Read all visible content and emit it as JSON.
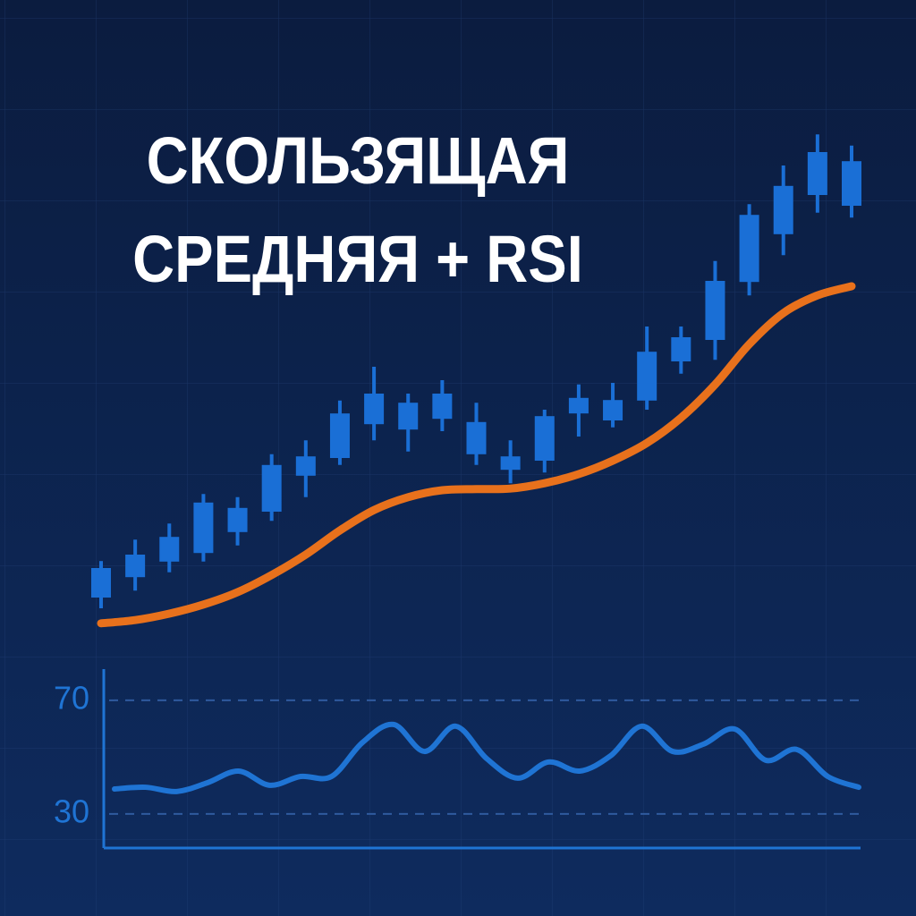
{
  "chart_data": [
    {
      "type": "candlestick",
      "title": "СКОЛЬЗЯЩАЯ СРЕДНЯЯ + RSI",
      "color": "#1a6fd6",
      "open": [
        12,
        15.8,
        18.7,
        20.3,
        24.2,
        28,
        34.7,
        38,
        44.3,
        48.3,
        45.3,
        44.7,
        38.3,
        37.5,
        46.3,
        45,
        48.7,
        56,
        60,
        70.8,
        79.7,
        87,
        93.3
      ],
      "close": [
        17.5,
        20,
        23.3,
        29.7,
        28.7,
        36.7,
        38.3,
        46.3,
        50,
        43.3,
        50,
        38.7,
        35.8,
        45.8,
        49.2,
        48.8,
        57.8,
        60.5,
        71,
        83.3,
        88.7,
        95,
        85
      ],
      "high": [
        18.8,
        22.8,
        25.8,
        31.3,
        30.7,
        38.7,
        41.3,
        48.7,
        55,
        50,
        52.5,
        48.3,
        41.3,
        47,
        51.7,
        52,
        62.5,
        62.5,
        74.7,
        85.3,
        92.5,
        98.3,
        96.2
      ],
      "low": [
        10,
        13.3,
        16.7,
        18.7,
        21.7,
        26.3,
        30.7,
        36.7,
        41.3,
        39.2,
        43,
        36.7,
        33.3,
        35.3,
        42,
        43.7,
        47,
        53.7,
        56.3,
        68.3,
        75.8,
        83.7,
        82.8
      ],
      "lines": [
        {
          "color": "#e8711c",
          "values": [
            7.2,
            7.8,
            9,
            10.7,
            13,
            16.2,
            20,
            24.5,
            28.3,
            30.7,
            32,
            32.2,
            32.3,
            33.3,
            35,
            37.5,
            40.8,
            45.5,
            51.7,
            59.2,
            65,
            68.3,
            70
          ]
        }
      ],
      "ylim": [
        0,
        100
      ]
    },
    {
      "type": "line",
      "color": "#1f74d4",
      "values": [
        38.8,
        39.4,
        37.9,
        41,
        45.1,
        40.1,
        43.2,
        43.2,
        55.2,
        61.5,
        52,
        60.9,
        49.5,
        42.6,
        48.3,
        45.1,
        50.5,
        60.9,
        52,
        54.6,
        59.9,
        48.9,
        52.7,
        43.2,
        39.4
      ],
      "ylim": [
        18,
        81
      ],
      "yticks": [
        30,
        70
      ],
      "grid": true
    }
  ]
}
